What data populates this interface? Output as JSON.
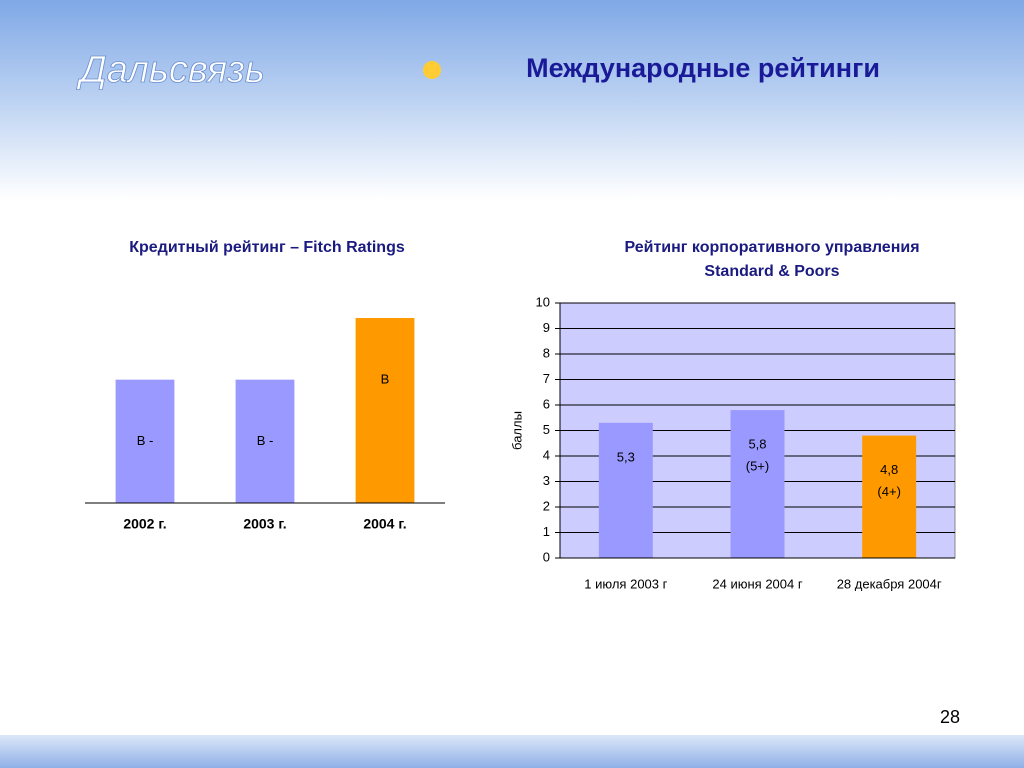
{
  "title": "Международные рейтинги",
  "logo": "Дальсвязь",
  "page_number": "28",
  "chart_data": [
    {
      "type": "bar",
      "title": "Кредитный рейтинг – Fitch Ratings",
      "categories": [
        "2002 г.",
        "2003 г.",
        "2004 г."
      ],
      "values": [
        2,
        2,
        3
      ],
      "value_labels": [
        "B -",
        "B -",
        "B"
      ],
      "colors": [
        "#9999ff",
        "#9999ff",
        "#ff9900"
      ]
    },
    {
      "type": "bar",
      "title": [
        "Рейтинг корпоративного управления",
        "Standard & Poors"
      ],
      "categories": [
        "1 июля 2003 г",
        "24 июня 2004 г",
        "28 декабря 2004г"
      ],
      "values": [
        5.3,
        5.8,
        4.8
      ],
      "value_labels": [
        [
          "5,3"
        ],
        [
          "5,8",
          "(5+)"
        ],
        [
          "4,8",
          "(4+)"
        ]
      ],
      "colors": [
        "#9999ff",
        "#9999ff",
        "#ff9900"
      ],
      "ylabel": "баллы",
      "ylim": [
        0,
        10
      ],
      "yticks": [
        0,
        1,
        2,
        3,
        4,
        5,
        6,
        7,
        8,
        9,
        10
      ],
      "grid": true,
      "plot_background": "#ccccff"
    }
  ]
}
